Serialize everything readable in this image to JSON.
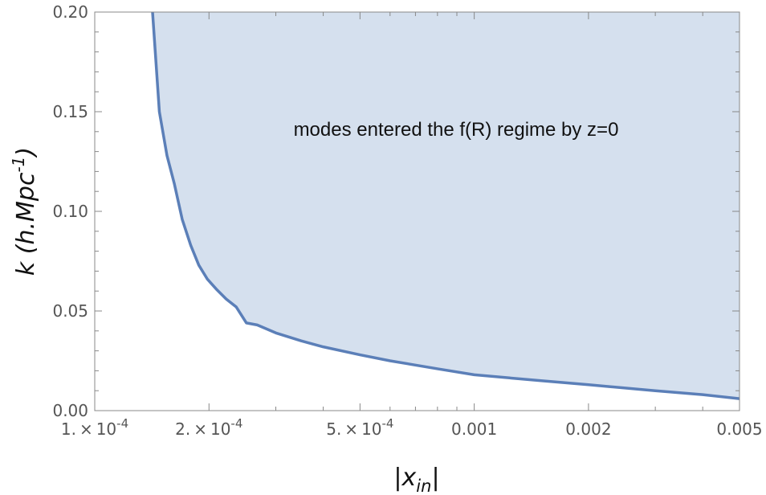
{
  "chart_data": {
    "type": "area",
    "title": "",
    "xlabel": {
      "base": "x",
      "sub": "in"
    },
    "ylabel": {
      "base": "k (h.Mpc",
      "sup": "-1",
      "tail": ")"
    },
    "x_scale": "log",
    "xlim": [
      0.0001,
      0.005
    ],
    "ylim": [
      0,
      0.2
    ],
    "x_ticks": [
      {
        "value": 0.0001,
        "mantissa": "1.",
        "exponent": "-4"
      },
      {
        "value": 0.0002,
        "mantissa": "2.",
        "exponent": "-4"
      },
      {
        "value": 0.0005,
        "mantissa": "5.",
        "exponent": "-4"
      },
      {
        "value": 0.001,
        "label": "0.001"
      },
      {
        "value": 0.002,
        "label": "0.002"
      },
      {
        "value": 0.005,
        "label": "0.005"
      }
    ],
    "y_ticks": [
      {
        "value": 0.0,
        "label": "0.00"
      },
      {
        "value": 0.05,
        "label": "0.05"
      },
      {
        "value": 0.1,
        "label": "0.10"
      },
      {
        "value": 0.15,
        "label": "0.15"
      },
      {
        "value": 0.2,
        "label": "0.20"
      }
    ],
    "series": [
      {
        "x": [
          0.000142,
          0.000148,
          0.000155,
          0.000162,
          0.00017,
          0.000179,
          0.000188,
          0.000198,
          0.000209,
          0.000222,
          0.000236,
          0.000251,
          0.000268,
          0.0003,
          0.00035,
          0.0004,
          0.0005,
          0.0006,
          0.0008,
          0.001,
          0.0015,
          0.002,
          0.003,
          0.004,
          0.005
        ],
        "y": [
          0.2,
          0.15,
          0.128,
          0.114,
          0.096,
          0.083,
          0.073,
          0.066,
          0.061,
          0.056,
          0.052,
          0.044,
          0.043,
          0.039,
          0.035,
          0.032,
          0.028,
          0.025,
          0.021,
          0.018,
          0.015,
          0.013,
          0.01,
          0.008,
          0.006
        ]
      }
    ],
    "annotation": "modes entered the f(R) regime by z=0",
    "colors": {
      "line": "#5b7fb8",
      "fill": "#d5e0ee",
      "frame": "#888888"
    },
    "grid": false,
    "legend": "none"
  }
}
